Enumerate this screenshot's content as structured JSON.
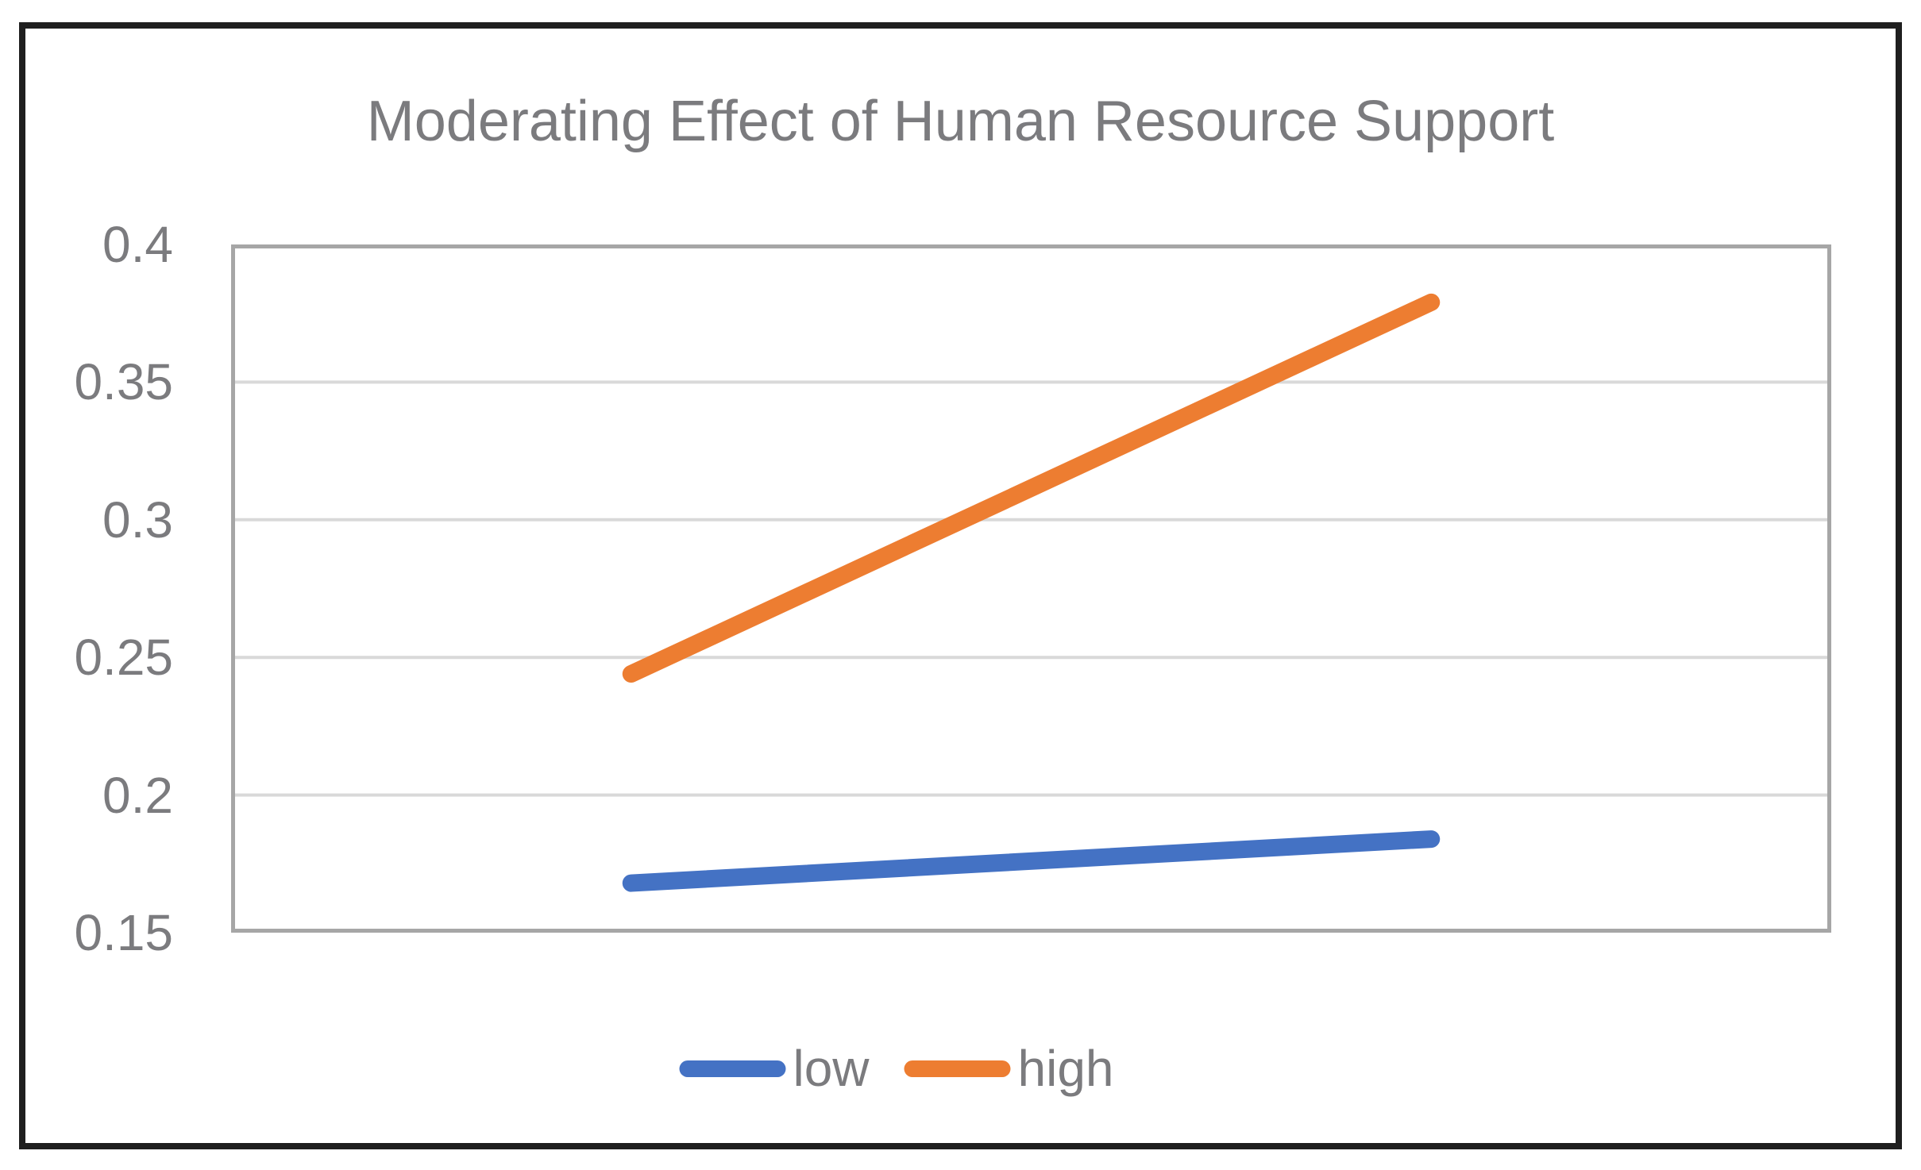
{
  "figure": {
    "background": "#ffffff",
    "frame_color": "#1f1f1f"
  },
  "chart_data": {
    "type": "line",
    "title": "Moderating Effect of Human Resource Support",
    "xlabel": "",
    "ylabel": "",
    "x_tick_labels": [],
    "n_points": 2,
    "series": [
      {
        "name": "low",
        "color": "#4472C4",
        "values": [
          0.168,
          0.184
        ]
      },
      {
        "name": "high",
        "color": "#ED7D31",
        "values": [
          0.244,
          0.379
        ]
      }
    ],
    "ylim": [
      0.15,
      0.4
    ],
    "yticks": [
      0.4,
      0.35,
      0.3,
      0.25,
      0.2,
      0.15
    ],
    "ytick_labels": [
      "0.4",
      "0.35",
      "0.3",
      "0.25",
      "0.2",
      "0.15"
    ],
    "grid": true,
    "gridline_color": "#d9d9d9",
    "plot_border_color": "#a6a6a6",
    "title_color": "#7b7b7e",
    "tick_label_color": "#7b7b7e",
    "legend_position": "bottom",
    "line_width": 22
  }
}
